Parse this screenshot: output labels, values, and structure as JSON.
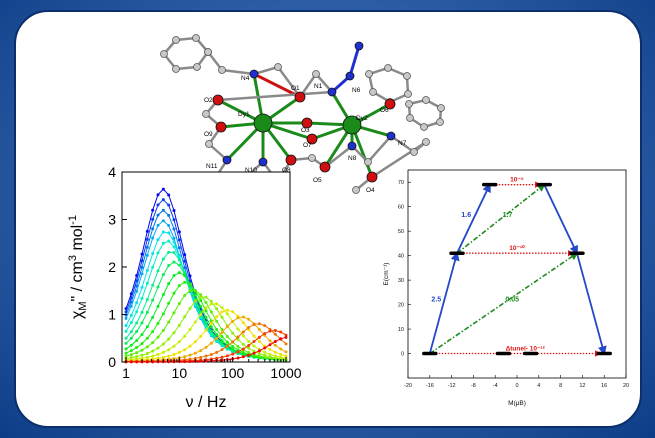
{
  "molecule": {
    "labels": [
      "N4",
      "O2",
      "O1",
      "O3",
      "N1",
      "N6",
      "O6",
      "Dy1",
      "O9",
      "O7",
      "Dy2",
      "N7",
      "N11",
      "N10",
      "O8",
      "N8",
      "O5",
      "O4"
    ]
  },
  "chart_data": [
    {
      "type": "line",
      "xlabel": "ν / Hz",
      "ylabel_parts": [
        "χ",
        "M",
        "\" / cm",
        "3",
        " mol",
        "-1"
      ],
      "xscale": "log",
      "xlim": [
        1,
        1000
      ],
      "ylim": [
        0,
        4
      ],
      "xticks": [
        "1",
        "10",
        "100",
        "1000"
      ],
      "yticks": [
        "0",
        "1",
        "2",
        "3",
        "4"
      ],
      "series_count": 18,
      "peak_values": [
        3.6,
        3.38,
        3.16,
        2.94,
        2.72,
        2.52,
        2.3,
        2.08,
        1.86,
        1.66,
        1.5,
        1.36,
        1.22,
        1.08,
        0.94,
        0.8,
        0.66,
        0.52
      ],
      "peak_frequencies": [
        5,
        5,
        5,
        5,
        5.5,
        6,
        7,
        8,
        10,
        13,
        18,
        28,
        45,
        80,
        150,
        300,
        600,
        1100
      ]
    },
    {
      "type": "scatter",
      "xlabel": "M(μB)",
      "ylabel": "E(cm⁻¹)",
      "xlim": [
        -20,
        20
      ],
      "ylim": [
        -10,
        75
      ],
      "xticks": [
        "-20",
        "-16",
        "-12",
        "-8",
        "-4",
        "0",
        "4",
        "8",
        "12",
        "16",
        "20"
      ],
      "yticks": [
        "0",
        "10",
        "20",
        "30",
        "40",
        "50",
        "60",
        "70"
      ],
      "levels": [
        {
          "x": -16,
          "e": 0
        },
        {
          "x": 16,
          "e": 0
        },
        {
          "x": -2.5,
          "e": 0
        },
        {
          "x": 2.5,
          "e": 0
        },
        {
          "x": -11,
          "e": 41
        },
        {
          "x": 11,
          "e": 41
        },
        {
          "x": -5,
          "e": 69
        },
        {
          "x": 5,
          "e": 69
        }
      ],
      "arrows": [
        {
          "from": [
            -16,
            0
          ],
          "to": [
            -11,
            41
          ],
          "label": "2.5",
          "color": "#2448c8"
        },
        {
          "from": [
            -11,
            41
          ],
          "to": [
            -5,
            69
          ],
          "label": "1.6",
          "color": "#2448c8"
        },
        {
          "from": [
            5,
            69
          ],
          "to": [
            11,
            41
          ],
          "label": "",
          "color": "#2448c8"
        },
        {
          "from": [
            11,
            41
          ],
          "to": [
            16,
            0
          ],
          "label": "",
          "color": "#2448c8"
        },
        {
          "from": [
            -16,
            0
          ],
          "to": [
            11,
            41
          ],
          "label": "0.05",
          "color": "#1e8a1e"
        },
        {
          "from": [
            -11,
            41
          ],
          "to": [
            5,
            69
          ],
          "label": "1.7",
          "color": "#1e8a1e"
        }
      ],
      "tunnel_labels": {
        "top": "10⁻⁶",
        "middle": "10⁻¹⁰",
        "bottom": "Δtunel- 10⁻¹²"
      }
    }
  ],
  "colors": {
    "blue_arrow": "#2448c8",
    "green_arrow": "#1e8a1e",
    "red_tunnel": "#e01515",
    "dy_atom": "#1a8a1a",
    "o_atom": "#d01010",
    "n_atom": "#2030d0",
    "c_atom": "#b0b0b0"
  }
}
